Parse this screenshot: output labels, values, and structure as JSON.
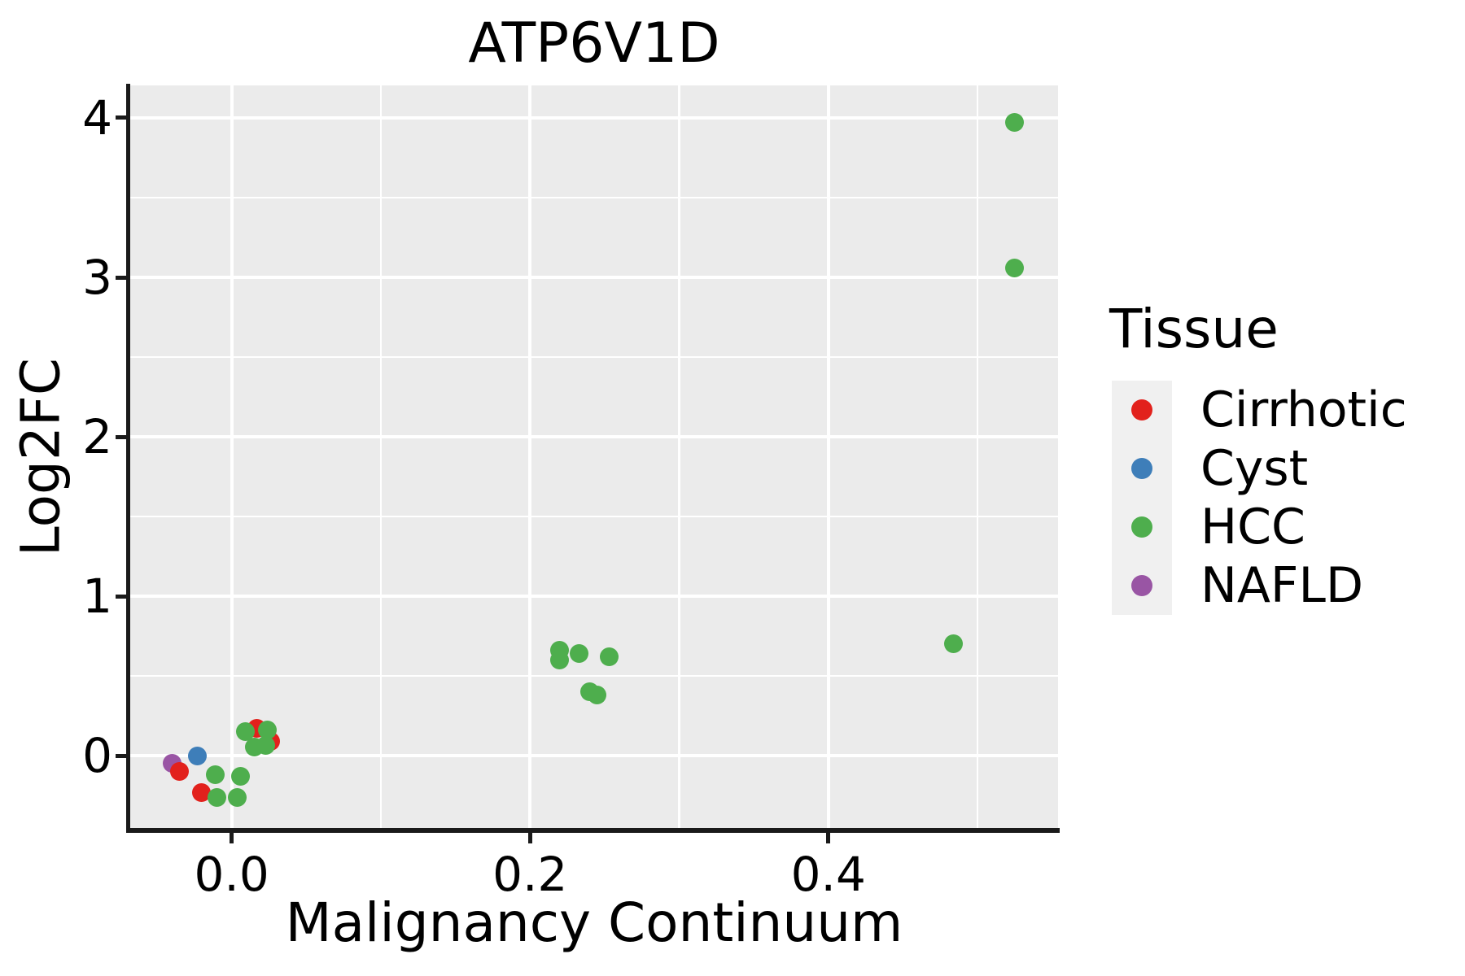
{
  "figure": {
    "title": "ATP6V1D",
    "x_label": "Malignancy Continuum",
    "y_label": "Log2FC"
  },
  "legend": {
    "title": "Tissue",
    "entries": [
      {
        "label": "Cirrhotic",
        "color": "#E2211C"
      },
      {
        "label": "Cyst",
        "color": "#3E7EB9"
      },
      {
        "label": "HCC",
        "color": "#4EAE4D"
      },
      {
        "label": "NAFLD",
        "color": "#9955A4"
      }
    ]
  },
  "chart_data": {
    "type": "scatter",
    "title": "ATP6V1D",
    "xlabel": "Malignancy Continuum",
    "ylabel": "Log2FC",
    "xlim": [
      -0.068,
      0.554
    ],
    "ylim": [
      -0.464,
      4.204
    ],
    "x_ticks": {
      "values": [
        0.0,
        0.2,
        0.4
      ],
      "labels": [
        "0.0",
        "0.2",
        "0.4"
      ]
    },
    "y_ticks": {
      "values": [
        0,
        1,
        2,
        3,
        4
      ],
      "labels": [
        "0",
        "1",
        "2",
        "3",
        "4"
      ]
    },
    "grid": {
      "major": true,
      "minor": true
    },
    "legend_position": "right",
    "colors": {
      "panel_bg": "#EBEBEB",
      "grid": "#FFFFFF",
      "axis": "#1A1A1A",
      "legend_key_bg": "#F0F0F0"
    },
    "series": [
      {
        "name": "NAFLD",
        "color": "#9955A4",
        "points": [
          [
            -0.04,
            -0.05
          ]
        ]
      },
      {
        "name": "Cirrhotic",
        "color": "#E2211C",
        "points": [
          [
            -0.035,
            -0.1
          ],
          [
            -0.02,
            -0.23
          ],
          [
            0.017,
            0.17
          ],
          [
            0.026,
            0.09
          ]
        ]
      },
      {
        "name": "Cyst",
        "color": "#3E7EB9",
        "points": [
          [
            -0.023,
            0.0
          ]
        ]
      },
      {
        "name": "HCC",
        "color": "#4EAE4D",
        "points": [
          [
            0.525,
            3.97
          ],
          [
            0.525,
            3.06
          ],
          [
            0.484,
            0.7
          ],
          [
            0.22,
            0.66
          ],
          [
            0.22,
            0.6
          ],
          [
            0.233,
            0.64
          ],
          [
            0.253,
            0.62
          ],
          [
            0.24,
            0.4
          ],
          [
            0.245,
            0.38
          ],
          [
            -0.011,
            -0.12
          ],
          [
            -0.01,
            -0.26
          ],
          [
            0.004,
            -0.26
          ],
          [
            0.006,
            -0.13
          ],
          [
            0.009,
            0.15
          ],
          [
            0.015,
            0.055
          ],
          [
            0.023,
            0.063
          ],
          [
            0.024,
            0.16
          ]
        ]
      }
    ]
  }
}
